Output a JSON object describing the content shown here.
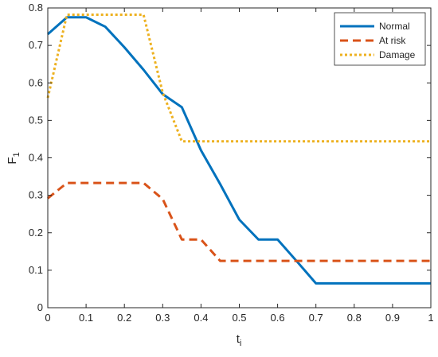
{
  "chart_data": {
    "type": "line",
    "xlabel": "t",
    "xlabel_sub": "i",
    "ylabel": "F",
    "ylabel_sub": "1",
    "xlim": [
      0,
      1
    ],
    "ylim": [
      0,
      0.8
    ],
    "xticks": [
      0,
      0.1,
      0.2,
      0.3,
      0.4,
      0.5,
      0.6,
      0.7,
      0.8,
      0.9,
      1
    ],
    "xtick_labels": [
      "0",
      "0.1",
      "0.2",
      "0.3",
      "0.4",
      "0.5",
      "0.6",
      "0.7",
      "0.8",
      "0.9",
      "1"
    ],
    "yticks": [
      0,
      0.1,
      0.2,
      0.3,
      0.4,
      0.5,
      0.6,
      0.7,
      0.8
    ],
    "ytick_labels": [
      "0",
      "0.1",
      "0.2",
      "0.3",
      "0.4",
      "0.5",
      "0.6",
      "0.7",
      "0.8"
    ],
    "grid": false,
    "legend_position": "top-right",
    "series": [
      {
        "name": "Normal",
        "color": "#0072BD",
        "dash": "solid",
        "x": [
          0,
          0.05,
          0.1,
          0.15,
          0.2,
          0.25,
          0.3,
          0.35,
          0.4,
          0.45,
          0.5,
          0.55,
          0.6,
          0.65,
          0.7,
          0.75,
          0.8,
          0.85,
          0.9,
          0.95,
          1
        ],
        "values": [
          0.73,
          0.775,
          0.775,
          0.75,
          0.695,
          0.635,
          0.57,
          0.535,
          0.42,
          0.33,
          0.235,
          0.182,
          0.182,
          0.124,
          0.065,
          0.065,
          0.065,
          0.065,
          0.065,
          0.065,
          0.065
        ]
      },
      {
        "name": "At risk",
        "color": "#D95319",
        "dash": "dashed",
        "x": [
          0,
          0.05,
          0.1,
          0.15,
          0.2,
          0.25,
          0.3,
          0.35,
          0.4,
          0.45,
          0.5,
          0.55,
          0.6,
          0.65,
          0.7,
          0.75,
          0.8,
          0.85,
          0.9,
          0.95,
          1
        ],
        "values": [
          0.292,
          0.333,
          0.333,
          0.333,
          0.333,
          0.333,
          0.29,
          0.182,
          0.182,
          0.125,
          0.125,
          0.125,
          0.125,
          0.125,
          0.125,
          0.125,
          0.125,
          0.125,
          0.125,
          0.125,
          0.125
        ]
      },
      {
        "name": "Damage",
        "color": "#EDB120",
        "dash": "dotted",
        "x": [
          0,
          0.05,
          0.1,
          0.15,
          0.2,
          0.25,
          0.3,
          0.35,
          0.4,
          0.45,
          0.5,
          0.55,
          0.6,
          0.65,
          0.7,
          0.75,
          0.8,
          0.85,
          0.9,
          0.95,
          1
        ],
        "values": [
          0.56,
          0.782,
          0.782,
          0.782,
          0.782,
          0.782,
          0.574,
          0.444,
          0.444,
          0.444,
          0.444,
          0.444,
          0.444,
          0.444,
          0.444,
          0.444,
          0.444,
          0.444,
          0.444,
          0.444,
          0.444
        ]
      }
    ]
  }
}
